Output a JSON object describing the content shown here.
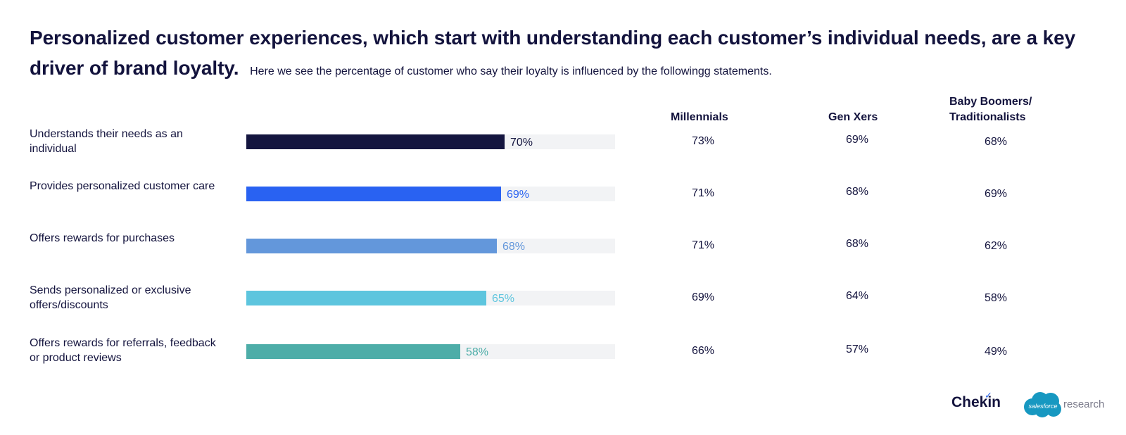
{
  "headline": {
    "main": "Personalized customer experiences, which start with understanding each customer’s individual needs, are a key driver of brand loyalty.",
    "sub": "Here we see the percentage of customer who say their loyalty is influenced by the followingg statements."
  },
  "columns": {
    "millennials": "Millennials",
    "genx": "Gen Xers",
    "boomers_line1": "Baby Boomers/",
    "boomers_line2": "Traditionalists"
  },
  "chart_data": {
    "type": "bar",
    "orientation": "horizontal",
    "xlim": [
      0,
      100
    ],
    "categories": [
      "Understands their needs as an individual",
      "Provides personalized customer care",
      "Offers rewards for purchases",
      "Sends personalized or exclusive offers/discounts",
      "Offers rewards for referrals, feedback or product reviews"
    ],
    "values": [
      70,
      69,
      68,
      65,
      58
    ],
    "value_labels": [
      "70%",
      "69%",
      "68%",
      "65%",
      "58%"
    ],
    "bar_colors": [
      "#14153f",
      "#2962f2",
      "#6397db",
      "#5dc5de",
      "#4dada8"
    ],
    "label_colors": [
      "#14153f",
      "#2962f2",
      "#6397db",
      "#5dc5de",
      "#4dada8"
    ],
    "track_color": "#f2f3f5",
    "table": {
      "headers": [
        "Millennials",
        "Gen Xers",
        "Baby Boomers/ Traditionalists"
      ],
      "rows": [
        [
          "73%",
          "69%",
          "68%"
        ],
        [
          "71%",
          "68%",
          "69%"
        ],
        [
          "71%",
          "68%",
          "62%"
        ],
        [
          "69%",
          "64%",
          "58%"
        ],
        [
          "66%",
          "57%",
          "49%"
        ]
      ]
    }
  },
  "brands": {
    "chekin": "Chekin",
    "salesforce_cloud": "salesforce",
    "salesforce_word": "research"
  }
}
